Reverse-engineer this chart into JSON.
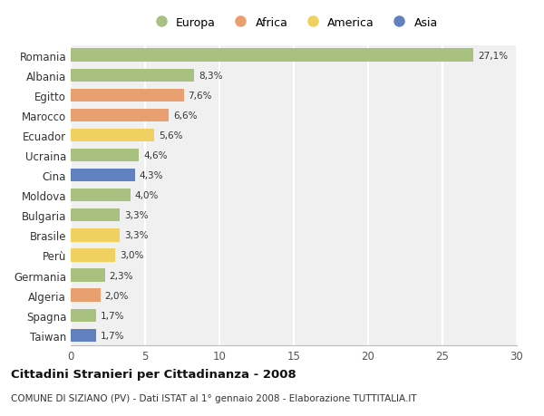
{
  "countries": [
    "Romania",
    "Albania",
    "Egitto",
    "Marocco",
    "Ecuador",
    "Ucraina",
    "Cina",
    "Moldova",
    "Bulgaria",
    "Brasile",
    "Perù",
    "Germania",
    "Algeria",
    "Spagna",
    "Taiwan"
  ],
  "values": [
    27.1,
    8.3,
    7.6,
    6.6,
    5.6,
    4.6,
    4.3,
    4.0,
    3.3,
    3.3,
    3.0,
    2.3,
    2.0,
    1.7,
    1.7
  ],
  "labels": [
    "27,1%",
    "8,3%",
    "7,6%",
    "6,6%",
    "5,6%",
    "4,6%",
    "4,3%",
    "4,0%",
    "3,3%",
    "3,3%",
    "3,0%",
    "2,3%",
    "2,0%",
    "1,7%",
    "1,7%"
  ],
  "continents": [
    "Europa",
    "Europa",
    "Africa",
    "Africa",
    "America",
    "Europa",
    "Asia",
    "Europa",
    "Europa",
    "America",
    "America",
    "Europa",
    "Africa",
    "Europa",
    "Asia"
  ],
  "continent_colors": {
    "Europa": "#a8c080",
    "Africa": "#e8a070",
    "America": "#f0d060",
    "Asia": "#6080c0"
  },
  "legend_order": [
    "Europa",
    "Africa",
    "America",
    "Asia"
  ],
  "title": "Cittadini Stranieri per Cittadinanza - 2008",
  "subtitle": "COMUNE DI SIZIANO (PV) - Dati ISTAT al 1° gennaio 2008 - Elaborazione TUTTITALIA.IT",
  "xlim": [
    0,
    30
  ],
  "xticks": [
    0,
    5,
    10,
    15,
    20,
    25,
    30
  ],
  "bg_color": "#ffffff",
  "plot_bg_color": "#f0f0f0",
  "grid_color": "#ffffff",
  "bar_height": 0.65
}
